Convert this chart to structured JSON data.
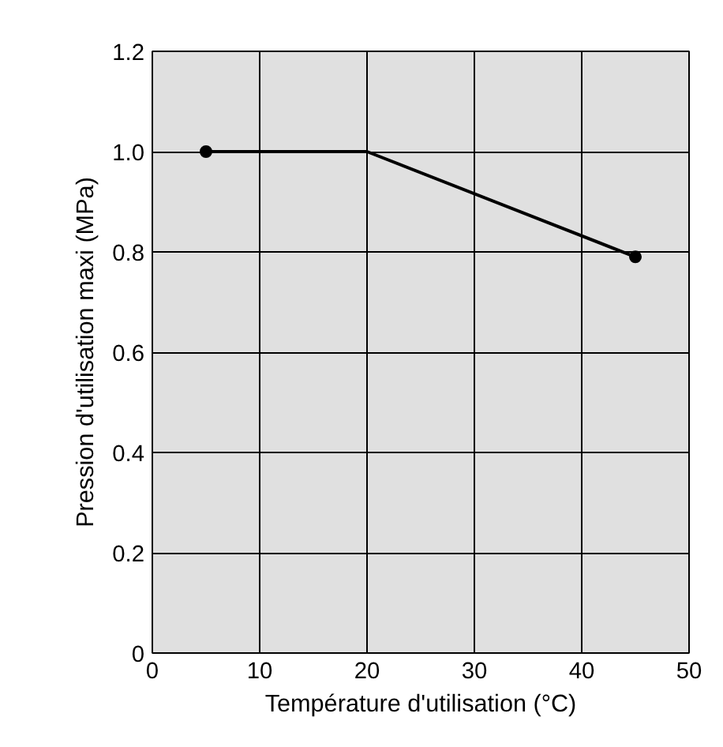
{
  "chart_data": {
    "type": "line",
    "xlabel": "Température d'utilisation (°C)",
    "ylabel": "Pression d'utilisation maxi (MPa)",
    "xlim": [
      0,
      50
    ],
    "ylim": [
      0,
      1.2
    ],
    "xticks": [
      0,
      10,
      20,
      30,
      40,
      50
    ],
    "yticks": [
      0,
      {
        "value": 0.2,
        "label": "0.2"
      },
      {
        "value": 0.4,
        "label": "0.4"
      },
      {
        "value": 0.6,
        "label": "0.6"
      },
      {
        "value": 0.8,
        "label": "0.8"
      },
      {
        "value": 1.0,
        "label": "1.0"
      },
      {
        "value": 1.2,
        "label": "1.2"
      }
    ],
    "grid": true,
    "series": [
      {
        "color": "#000000",
        "x": [
          5,
          20,
          45
        ],
        "values": [
          1.0,
          1.0,
          0.79
        ],
        "marker": "none"
      },
      {
        "type": "scatter",
        "color": "#000000",
        "x": [
          5,
          45
        ],
        "values": [
          1.0,
          0.79
        ],
        "marker": "circle"
      }
    ]
  }
}
